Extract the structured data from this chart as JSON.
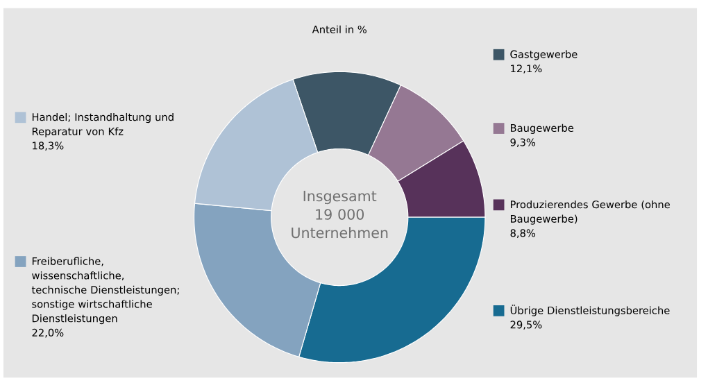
{
  "chart_data": {
    "type": "donut",
    "title": "Anteil in %",
    "categories": [
      "Gastgewerbe",
      "Baugewerbe",
      "Produzierendes Gewerbe (ohne Baugewerbe)",
      "Übrige Dienstleistungsbereiche",
      "Freiberufliche, wissenschaftliche, technische Dienstleistungen; sonstige wirtschaftliche Dienstleistungen",
      "Handel; Instandhaltung und Reparatur von Kfz"
    ],
    "values": [
      12.1,
      9.3,
      8.8,
      29.5,
      22.0,
      18.3
    ],
    "colors": [
      "#3d5666",
      "#957893",
      "#57325a",
      "#176b91",
      "#84a3bf",
      "#afc2d6"
    ],
    "value_labels": [
      "12,1%",
      "9,3%",
      "8,8%",
      "29,5%",
      "22,0%",
      "18,3%"
    ],
    "annotations": [
      "Insgesamt 19 000 Unternehmen"
    ],
    "legend": "right"
  }
}
